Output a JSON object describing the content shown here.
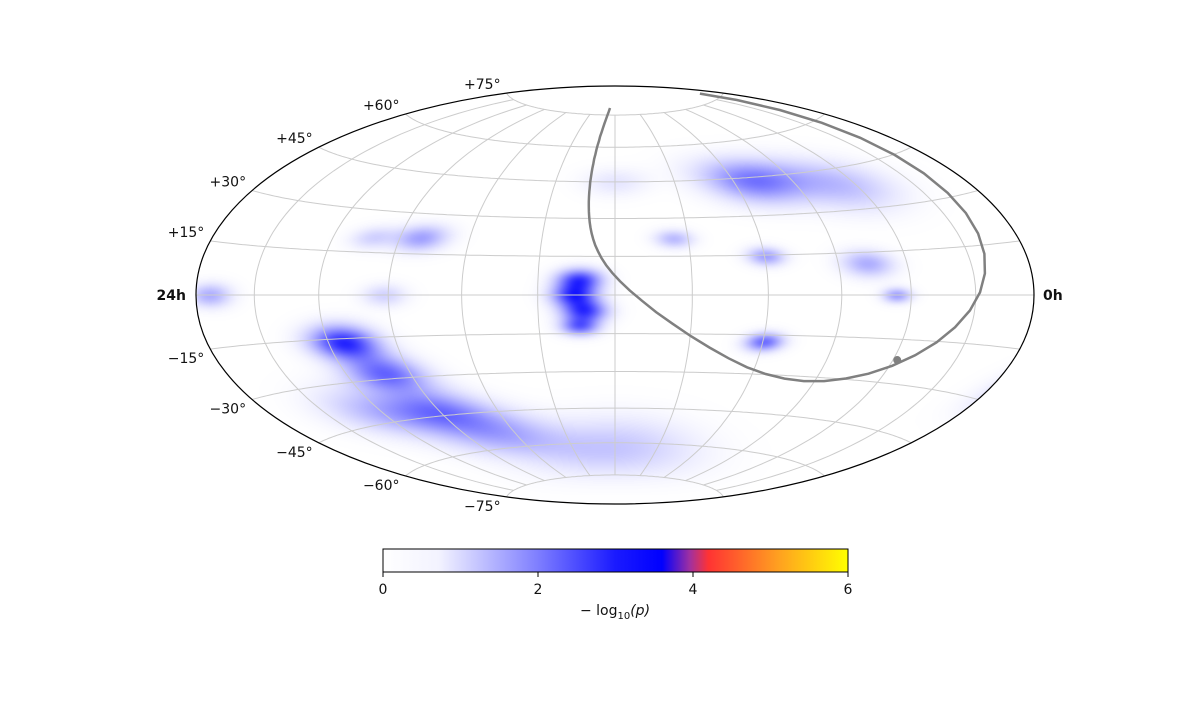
{
  "colors": {
    "grid": "#cccccc",
    "boundary": "#000000",
    "plane_curve": "#808080",
    "cmap_low": "#ffffff",
    "cmap_mid": "#0000ff",
    "cmap_hot": "#ff4444",
    "cmap_high": "#ffff00"
  },
  "map": {
    "projection": "hammer",
    "ra_left_label": "24h",
    "ra_right_label": "0h",
    "dec_labels": [
      {
        "dec": 75,
        "text": "+75°"
      },
      {
        "dec": 60,
        "text": "+60°"
      },
      {
        "dec": 45,
        "text": "+45°"
      },
      {
        "dec": 30,
        "text": "+30°"
      },
      {
        "dec": 15,
        "text": "+15°"
      },
      {
        "dec": -15,
        "text": "−15°"
      },
      {
        "dec": -30,
        "text": "−30°"
      },
      {
        "dec": -45,
        "text": "−45°"
      },
      {
        "dec": -60,
        "text": "−60°"
      },
      {
        "dec": -75,
        "text": "−75°"
      }
    ],
    "hotspots": [
      {
        "lon": 138,
        "lat": 12,
        "sig": 2.9,
        "amp": 1.0
      },
      {
        "lon": 148,
        "lat": 6,
        "sig": 10,
        "amp": 0.55
      },
      {
        "lon": 150,
        "lat": -3,
        "sig": 6,
        "amp": 0.6
      },
      {
        "lon": 140,
        "lat": 30,
        "sig": 5,
        "amp": 0.5
      },
      {
        "lon": 130,
        "lat": 48,
        "sig": 6,
        "amp": 0.35
      },
      {
        "lon": 118,
        "lat": 45,
        "sig": 6,
        "amp": 0.3
      },
      {
        "lon": 158,
        "lat": 25,
        "sig": 5,
        "amp": 0.3
      },
      {
        "lon": 165,
        "lat": 12,
        "sig": 4,
        "amp": 0.35
      },
      {
        "lon": 170,
        "lat": -10,
        "sig": 5,
        "amp": 0.25
      },
      {
        "lon": 115,
        "lat": -28,
        "sig": 6,
        "amp": 0.8
      },
      {
        "lon": 100,
        "lat": -33,
        "sig": 6,
        "amp": 0.55
      },
      {
        "lon": 120,
        "lat": -40,
        "sig": 6,
        "amp": 0.35
      },
      {
        "lon": -7,
        "lat": 6,
        "sig": 3,
        "amp": 0.75
      },
      {
        "lon": -8,
        "lat": 0,
        "sig": 3,
        "amp": 0.75
      },
      {
        "lon": -6,
        "lat": -6,
        "sig": 3,
        "amp": 0.75
      },
      {
        "lon": -7,
        "lat": -12,
        "sig": 2.5,
        "amp": 0.6
      },
      {
        "lon": -55,
        "lat": -18,
        "sig": 4.5,
        "amp": 0.85
      },
      {
        "lon": -50,
        "lat": -30,
        "sig": 5,
        "amp": 0.6
      },
      {
        "lon": -45,
        "lat": -45,
        "sig": 6,
        "amp": 0.45
      },
      {
        "lon": -35,
        "lat": -55,
        "sig": 7,
        "amp": 0.35
      },
      {
        "lon": -60,
        "lat": -45,
        "sig": 7,
        "amp": 0.3
      },
      {
        "lon": 30,
        "lat": -18,
        "sig": 2.5,
        "amp": 0.6
      },
      {
        "lon": 55,
        "lat": 0,
        "sig": 2,
        "amp": 0.4
      },
      {
        "lon": 30,
        "lat": 15,
        "sig": 2.5,
        "amp": 0.4
      },
      {
        "lon": 50,
        "lat": 12,
        "sig": 3.5,
        "amp": 0.35
      },
      {
        "lon": 35,
        "lat": 45,
        "sig": 6,
        "amp": 0.55
      },
      {
        "lon": 55,
        "lat": 43,
        "sig": 7,
        "amp": 0.3
      },
      {
        "lon": -40,
        "lat": 22,
        "sig": 3.5,
        "amp": 0.4
      },
      {
        "lon": -50,
        "lat": 22,
        "sig": 3,
        "amp": 0.2
      },
      {
        "lon": -80,
        "lat": 0,
        "sig": 3,
        "amp": 0.35
      },
      {
        "lon": -100,
        "lat": 12,
        "sig": 4,
        "amp": 0.3
      },
      {
        "lon": -110,
        "lat": 25,
        "sig": 5,
        "amp": 0.25
      },
      {
        "lon": -150,
        "lat": 35,
        "sig": 6,
        "amp": 0.2
      },
      {
        "lon": -165,
        "lat": -10,
        "sig": 6,
        "amp": 0.2
      },
      {
        "lon": -45,
        "lat": 0,
        "sig": 3,
        "amp": 0.2
      },
      {
        "lon": 12,
        "lat": 22,
        "sig": 2.5,
        "amp": 0.3
      },
      {
        "lon": 0,
        "lat": -62,
        "sig": 9,
        "amp": 0.25
      },
      {
        "lon": 0,
        "lat": 45,
        "sig": 4,
        "amp": 0.12
      }
    ],
    "galactic_plane": [
      [
        -7.5,
        78.5
      ],
      [
        -8.3,
        76.6
      ],
      [
        -9.0,
        74.7
      ],
      [
        -9.6,
        72.8
      ],
      [
        -10.2,
        70.8
      ],
      [
        -10.6,
        68.8
      ],
      [
        -11.0,
        66.8
      ],
      [
        -11.4,
        64.8
      ],
      [
        -11.6,
        62.8
      ],
      [
        -11.9,
        60.8
      ],
      [
        -12.1,
        58.8
      ],
      [
        -12.2,
        56.8
      ],
      [
        -12.4,
        54.8
      ],
      [
        -12.4,
        52.8
      ],
      [
        -12.5,
        50.8
      ],
      [
        -12.5,
        48.8
      ],
      [
        -12.5,
        46.8
      ],
      [
        -12.5,
        44.8
      ],
      [
        -12.4,
        42.8
      ],
      [
        -12.3,
        40.8
      ],
      [
        -12.2,
        38.8
      ],
      [
        -12.0,
        36.8
      ],
      [
        -11.8,
        34.8
      ],
      [
        -11.5,
        32.7
      ],
      [
        -11.2,
        30.6
      ],
      [
        -10.8,
        28.5
      ],
      [
        -10.3,
        26.3
      ],
      [
        -9.7,
        24.1
      ],
      [
        -8.9,
        21.8
      ],
      [
        -8.0,
        19.4
      ],
      [
        -6.8,
        17.0
      ],
      [
        -5.4,
        14.4
      ],
      [
        -3.5,
        11.6
      ],
      [
        -1.1,
        8.6
      ],
      [
        1.9,
        5.4
      ],
      [
        5.7,
        1.8
      ],
      [
        10.4,
        -2.2
      ],
      [
        16.0,
        -6.6
      ],
      [
        22.6,
        -11.1
      ],
      [
        30.2,
        -15.8
      ],
      [
        38.5,
        -20.2
      ],
      [
        47.4,
        -24.2
      ],
      [
        56.6,
        -27.5
      ],
      [
        66.0,
        -29.8
      ],
      [
        75.5,
        -31.2
      ],
      [
        85.0,
        -31.7
      ],
      [
        94.4,
        -31.2
      ],
      [
        103.7,
        -29.7
      ],
      [
        112.7,
        -27.4
      ],
      [
        121.2,
        -24.1
      ],
      [
        129.1,
        -20.0
      ],
      [
        136.2,
        -15.3
      ],
      [
        142.4,
        -10.2
      ],
      [
        147.7,
        -4.8
      ],
      [
        152.1,
        0.8
      ],
      [
        155.6,
        6.5
      ],
      [
        158.3,
        12.4
      ],
      [
        160.3,
        18.5
      ],
      [
        161.6,
        24.8
      ],
      [
        162.4,
        31.3
      ],
      [
        162.8,
        38.0
      ],
      [
        162.9,
        44.8
      ],
      [
        162.9,
        51.8
      ],
      [
        162.8,
        58.8
      ],
      [
        162.8,
        65.8
      ],
      [
        162.9,
        72.5
      ],
      [
        163.2,
        78.0
      ]
    ],
    "plane_marker": {
      "lon": 122,
      "lat": -22
    }
  },
  "colorbar": {
    "ticks": [
      "0",
      "2",
      "4",
      "6"
    ],
    "vmin": 0,
    "vmax": 6,
    "label_prefix": "− log",
    "label_sub": "10",
    "label_suffix": "(p)"
  }
}
